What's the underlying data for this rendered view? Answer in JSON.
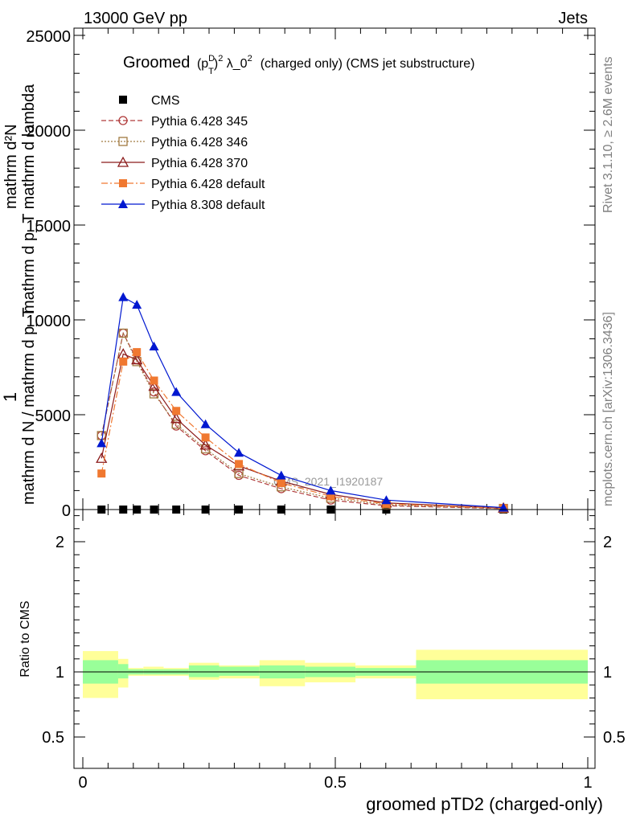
{
  "header": {
    "left": "13000 GeV pp",
    "right": "Jets"
  },
  "side_labels": {
    "rivet": "Rivet 3.1.10, ≥ 2.6M events",
    "site": "mcplots.cern.ch [arXiv:1306.3436]"
  },
  "watermark": "CMS_2021_I1920187",
  "chart_data": [
    {
      "type": "line",
      "title": {
        "prefix": "Groomed",
        "suffix": "(charged only) (CMS jet substructure)"
      },
      "ylabel_top": "mathrm d²N",
      "ylabel_top2": "mathrm d p_T mathrm d lambda",
      "ylabel_one": "1",
      "ylabel_bottom": "mathrm d N / mathrm d p_T",
      "xlim": [
        0,
        1
      ],
      "ylim": [
        0,
        25000
      ],
      "yticks": [
        0,
        5000,
        10000,
        15000,
        20000,
        25000
      ],
      "ytick_labels": [
        "0",
        "5000",
        "10000",
        "15000",
        "20000",
        "25000"
      ],
      "x": [
        0.037,
        0.08,
        0.107,
        0.141,
        0.185,
        0.243,
        0.309,
        0.393,
        0.491,
        0.601,
        0.833
      ],
      "series": [
        {
          "name": "CMS",
          "color": "#000000",
          "marker": "square-filled",
          "line": "none",
          "values": [
            0.5,
            0.5,
            0.5,
            0.5,
            0.5,
            0.5,
            0.5,
            0.5,
            0.5,
            0.5,
            0.5
          ]
        },
        {
          "name": "Pythia 6.428 345",
          "color": "#b03a3a",
          "marker": "circle-open",
          "line": "dashed",
          "values": [
            3900,
            9300,
            7900,
            6200,
            4400,
            3100,
            1800,
            1100,
            500,
            200,
            50
          ]
        },
        {
          "name": "Pythia 6.428 346",
          "color": "#a07a40",
          "marker": "square-open",
          "line": "dotted",
          "values": [
            3900,
            9300,
            7800,
            6100,
            4500,
            3200,
            1900,
            1200,
            600,
            250,
            60
          ]
        },
        {
          "name": "Pythia 6.428 370",
          "color": "#8b1a1a",
          "marker": "triangle-open",
          "line": "solid",
          "values": [
            2700,
            8200,
            7900,
            6500,
            4800,
            3400,
            2300,
            1500,
            800,
            350,
            80
          ]
        },
        {
          "name": "Pythia 6.428 default",
          "color": "#f07830",
          "marker": "square-filled",
          "line": "dashdot",
          "values": [
            1900,
            7800,
            8300,
            6800,
            5200,
            3800,
            2400,
            1400,
            700,
            300,
            70
          ]
        },
        {
          "name": "Pythia 8.308 default",
          "color": "#0018d0",
          "marker": "triangle-filled",
          "line": "solid",
          "values": [
            3500,
            11200,
            10800,
            8600,
            6200,
            4500,
            3000,
            1800,
            1000,
            500,
            100
          ]
        }
      ],
      "legend": "top-left"
    },
    {
      "type": "area",
      "xlabel": "groomed pTD2 (charged-only)",
      "ylabel": "Ratio to CMS",
      "xlim": [
        0,
        1
      ],
      "ylim": [
        0.4,
        2.3
      ],
      "xticks": [
        0,
        0.5,
        1
      ],
      "xtick_labels": [
        "0",
        "0.5",
        "1"
      ],
      "yticks": [
        0.5,
        1,
        2
      ],
      "ytick_labels": [
        "0.5",
        "1",
        "2"
      ],
      "reference_line": 1,
      "bins": [
        {
          "x0": 0.0,
          "x1": 0.07,
          "stat_lo": 0.91,
          "stat_hi": 1.09,
          "tot_lo": 0.8,
          "tot_hi": 1.16
        },
        {
          "x0": 0.07,
          "x1": 0.09,
          "stat_lo": 0.95,
          "stat_hi": 1.06,
          "tot_lo": 0.88,
          "tot_hi": 1.1
        },
        {
          "x0": 0.09,
          "x1": 0.12,
          "stat_lo": 0.98,
          "stat_hi": 1.02,
          "tot_lo": 0.97,
          "tot_hi": 1.03
        },
        {
          "x0": 0.12,
          "x1": 0.16,
          "stat_lo": 0.98,
          "stat_hi": 1.02,
          "tot_lo": 0.97,
          "tot_hi": 1.04
        },
        {
          "x0": 0.16,
          "x1": 0.21,
          "stat_lo": 0.98,
          "stat_hi": 1.02,
          "tot_lo": 0.97,
          "tot_hi": 1.03
        },
        {
          "x0": 0.21,
          "x1": 0.27,
          "stat_lo": 0.96,
          "stat_hi": 1.05,
          "tot_lo": 0.94,
          "tot_hi": 1.07
        },
        {
          "x0": 0.27,
          "x1": 0.35,
          "stat_lo": 0.97,
          "stat_hi": 1.04,
          "tot_lo": 0.95,
          "tot_hi": 1.05
        },
        {
          "x0": 0.35,
          "x1": 0.44,
          "stat_lo": 0.95,
          "stat_hi": 1.05,
          "tot_lo": 0.89,
          "tot_hi": 1.09
        },
        {
          "x0": 0.44,
          "x1": 0.54,
          "stat_lo": 0.96,
          "stat_hi": 1.04,
          "tot_lo": 0.92,
          "tot_hi": 1.07
        },
        {
          "x0": 0.54,
          "x1": 0.66,
          "stat_lo": 0.97,
          "stat_hi": 1.03,
          "tot_lo": 0.95,
          "tot_hi": 1.05
        },
        {
          "x0": 0.66,
          "x1": 1.0,
          "stat_lo": 0.91,
          "stat_hi": 1.09,
          "tot_lo": 0.79,
          "tot_hi": 1.17
        }
      ],
      "stat_color": "#99ff99",
      "total_color": "#ffff99"
    }
  ]
}
